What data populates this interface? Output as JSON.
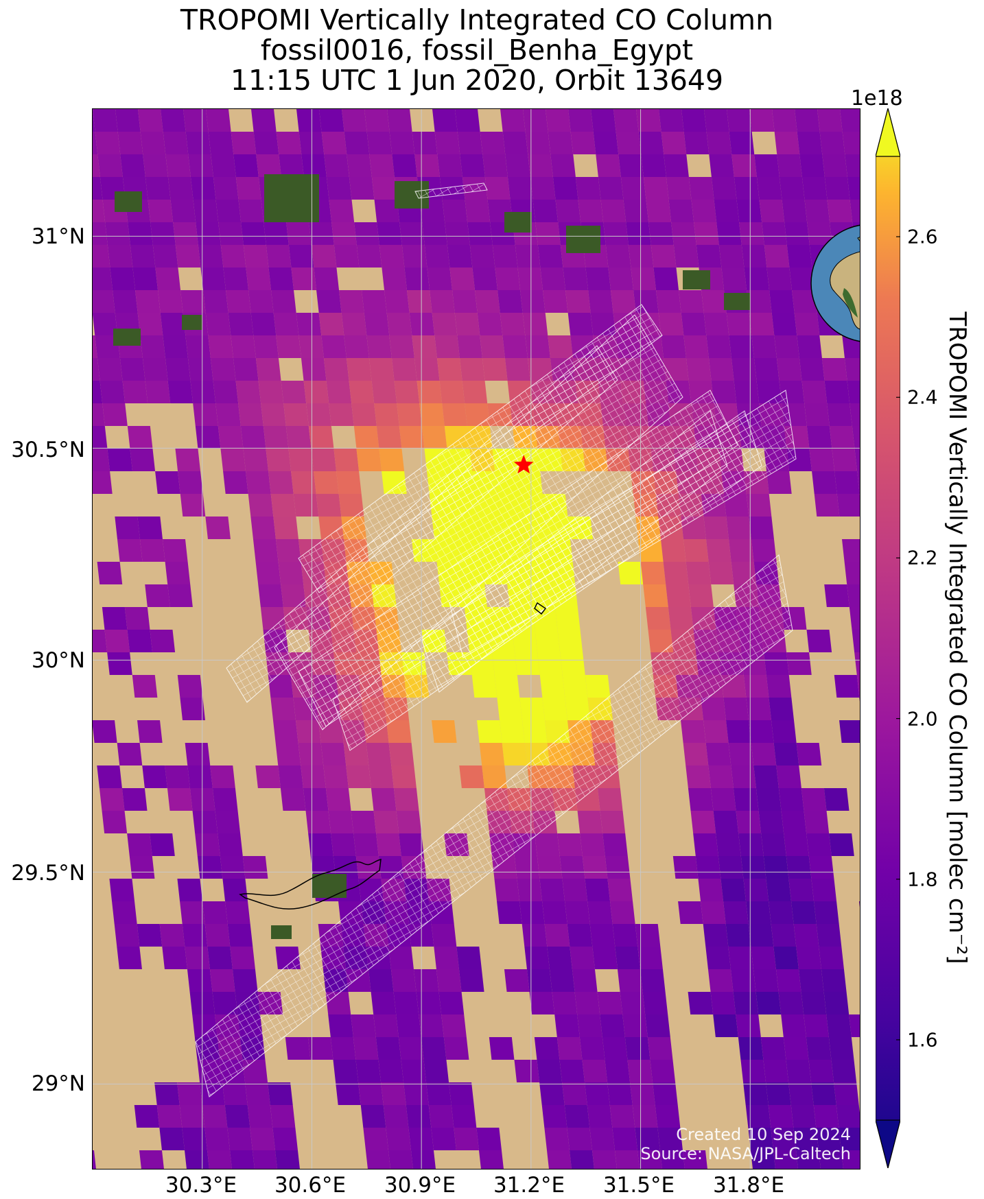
{
  "title": {
    "line1": "TROPOMI Vertically Integrated CO Column",
    "line2": "fossil0016, fossil_Benha_Egypt",
    "line3": "11:15 UTC 1 Jun 2020, Orbit 13649"
  },
  "axes": {
    "lat_ticks": [
      "31°N",
      "30.5°N",
      "30°N",
      "29.5°N",
      "29°N"
    ],
    "lon_ticks": [
      "30.3°E",
      "30.6°E",
      "30.9°E",
      "31.2°E",
      "31.5°E",
      "31.8°E"
    ],
    "lat_values": [
      31.0,
      30.5,
      30.0,
      29.5,
      29.0
    ],
    "lon_values": [
      30.3,
      30.6,
      30.9,
      31.2,
      31.5,
      31.8
    ],
    "lat_range": [
      28.8,
      31.3
    ],
    "lon_range": [
      30.0,
      32.1
    ],
    "grid": true
  },
  "colorbar": {
    "multiplier": "1e18",
    "label": "TROPOMI Vertically Integrated CO Column [molec cm⁻²]",
    "ticks": [
      "1.6",
      "1.8",
      "2.0",
      "2.2",
      "2.4",
      "2.6"
    ],
    "tick_values": [
      1.6,
      1.8,
      2.0,
      2.2,
      2.4,
      2.6
    ],
    "range": [
      1.5,
      2.7
    ],
    "colormap": "plasma",
    "extend": "both"
  },
  "source_marker": {
    "name": "fossil_Benha_Egypt",
    "lon": 31.18,
    "lat": 30.46,
    "color": "#ff0000",
    "symbol": "star"
  },
  "credit": {
    "line1": "Created 10 Sep 2024",
    "line2": "Source: NASA/JPL-Caltech"
  },
  "colors": {
    "desert": "#d8b98a",
    "vegetation": "#3b5a26",
    "grid": "#c8c8c8",
    "footprint_outline": "#ffffff",
    "globe_ocean": "#4b87b8",
    "globe_land": "#c9b37e"
  }
}
